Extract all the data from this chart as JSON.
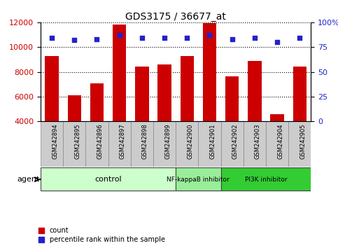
{
  "title": "GDS3175 / 36677_at",
  "samples": [
    "GSM242894",
    "GSM242895",
    "GSM242896",
    "GSM242897",
    "GSM242898",
    "GSM242899",
    "GSM242900",
    "GSM242901",
    "GSM242902",
    "GSM242903",
    "GSM242904",
    "GSM242905"
  ],
  "counts": [
    9300,
    6100,
    7050,
    11800,
    8450,
    8600,
    9300,
    11950,
    7650,
    8900,
    4600,
    8400
  ],
  "percentile_ranks": [
    84,
    82,
    83,
    87,
    84,
    84,
    84,
    87,
    83,
    84,
    80,
    84
  ],
  "bar_color": "#cc0000",
  "dot_color": "#2222cc",
  "ylim_left": [
    4000,
    12000
  ],
  "ylim_right": [
    0,
    100
  ],
  "yticks_left": [
    4000,
    6000,
    8000,
    10000,
    12000
  ],
  "yticks_right": [
    0,
    25,
    50,
    75,
    100
  ],
  "yticklabels_right": [
    "0",
    "25",
    "50",
    "75",
    "100%"
  ],
  "groups": [
    {
      "label": "control",
      "start": 0,
      "end": 6,
      "color": "#ccffcc"
    },
    {
      "label": "NF-kappaB inhibitor",
      "start": 6,
      "end": 8,
      "color": "#99ee99"
    },
    {
      "label": "PI3K inhibitor",
      "start": 8,
      "end": 12,
      "color": "#33cc33"
    }
  ],
  "agent_label": "agent",
  "legend_count_label": "count",
  "legend_pct_label": "percentile rank within the sample",
  "left_axis_color": "#cc0000",
  "right_axis_color": "#2222cc",
  "tick_label_bg": "#cccccc",
  "bar_width": 0.6
}
